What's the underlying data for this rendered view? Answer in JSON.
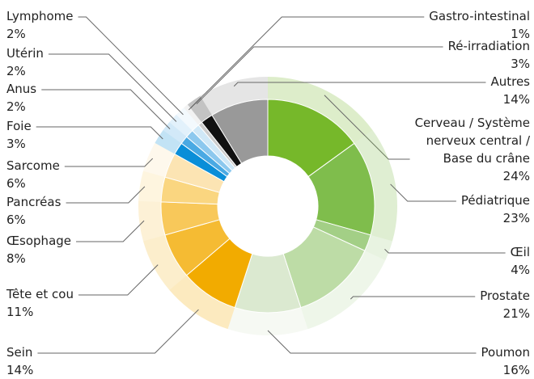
{
  "chart_data": {
    "type": "pie",
    "categories": [
      "Cerveau / Système\nnerveux central /\nBase du crâne",
      "Pédiatrique",
      "Œil",
      "Prostate",
      "Poumon",
      "Sein",
      "Tête et cou",
      "Œsophage",
      "Pancréas",
      "Sarcome",
      "Foie",
      "Anus",
      "Utérin",
      "Lymphome",
      "Gastro-intestinal",
      "Ré-irradiation",
      "Autres"
    ],
    "values": [
      24,
      23,
      4,
      21,
      16,
      14,
      11,
      8,
      6,
      6,
      3,
      2,
      2,
      2,
      1,
      3,
      14
    ],
    "value_labels": [
      "24%",
      "23%",
      "4%",
      "21%",
      "16%",
      "14%",
      "11%",
      "8%",
      "6%",
      "6%",
      "3%",
      "2%",
      "2%",
      "2%",
      "1%",
      "3%",
      "14%"
    ],
    "colors": [
      "#76b82a",
      "#7fbd4c",
      "#a3cf86",
      "#bddca6",
      "#dbe9d0",
      "#f2ab00",
      "#f5bb33",
      "#f8c85a",
      "#fad680",
      "#fce4b3",
      "#0a8ed8",
      "#4aa9e3",
      "#8cc8ee",
      "#d0e8f7",
      "#cccccc",
      "#111111",
      "#999999"
    ]
  }
}
